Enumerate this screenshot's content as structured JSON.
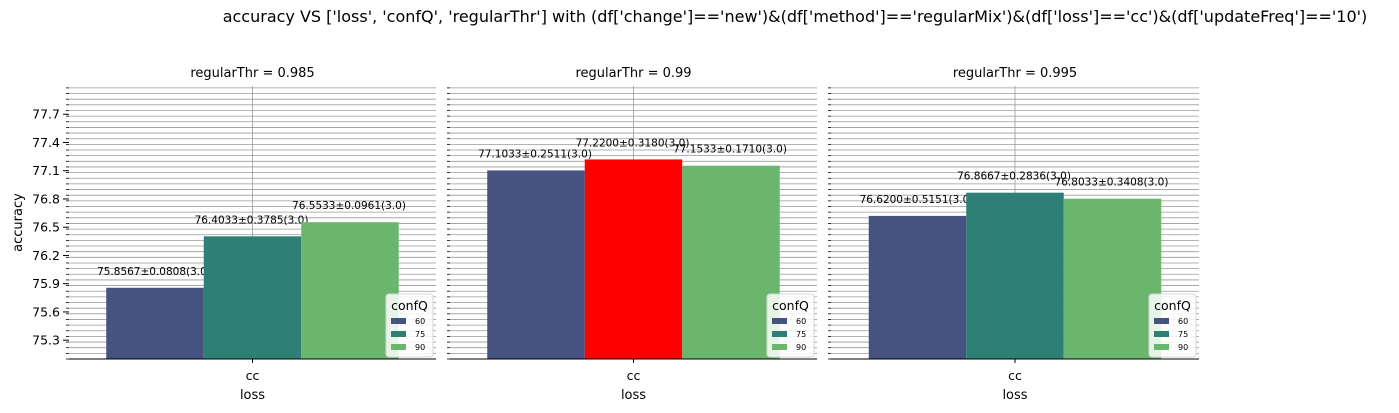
{
  "figure": {
    "title": "accuracy VS ['loss', 'confQ', 'regularThr'] with (df['change']=='new')&(df['method']=='regularMix')&(df['loss']=='cc')&(df['updateFreq']=='10')"
  },
  "chart_data": [
    {
      "type": "bar",
      "title": "regularThr = 0.985",
      "xlabel": "loss",
      "ylabel": "accuracy",
      "categories": [
        "cc"
      ],
      "ylim": [
        75.1,
        78.0
      ],
      "yticks": [
        "75.3",
        "75.6",
        "75.9",
        "76.2",
        "76.5",
        "76.8",
        "77.1",
        "77.4",
        "77.7"
      ],
      "grid": true,
      "legend": {
        "title": "confQ",
        "position": "lower-right"
      },
      "series": [
        {
          "name": "60",
          "color": "#46527f",
          "values": [
            75.8567
          ],
          "label": "75.8567±0.0808(3.0)"
        },
        {
          "name": "75",
          "color": "#2e8077",
          "values": [
            76.4033
          ],
          "label": "76.4033±0.3785(3.0)"
        },
        {
          "name": "90",
          "color": "#6ab66d",
          "values": [
            76.5533
          ],
          "label": "76.5533±0.0961(3.0)"
        }
      ]
    },
    {
      "type": "bar",
      "title": "regularThr = 0.99",
      "xlabel": "loss",
      "ylabel": "",
      "categories": [
        "cc"
      ],
      "ylim": [
        75.1,
        78.0
      ],
      "grid": true,
      "legend": {
        "title": "confQ",
        "position": "lower-right"
      },
      "series": [
        {
          "name": "60",
          "color": "#46527f",
          "values": [
            77.1033
          ],
          "label": "77.1033±0.2511(3.0)"
        },
        {
          "name": "75",
          "color": "#2e8077",
          "bar_color": "#ff0000",
          "values": [
            77.22
          ],
          "label": "77.2200±0.3180(3.0)"
        },
        {
          "name": "90",
          "color": "#6ab66d",
          "values": [
            77.1533
          ],
          "label": "77.1533±0.1710(3.0)"
        }
      ]
    },
    {
      "type": "bar",
      "title": "regularThr = 0.995",
      "xlabel": "loss",
      "ylabel": "",
      "categories": [
        "cc"
      ],
      "ylim": [
        75.1,
        78.0
      ],
      "grid": true,
      "legend": {
        "title": "confQ",
        "position": "lower-right"
      },
      "series": [
        {
          "name": "60",
          "color": "#46527f",
          "values": [
            76.62
          ],
          "label": "76.6200±0.5151(3.0)"
        },
        {
          "name": "75",
          "color": "#2e8077",
          "values": [
            76.8667
          ],
          "label": "76.8667±0.2836(3.0)"
        },
        {
          "name": "90",
          "color": "#6ab66d",
          "values": [
            76.8033
          ],
          "label": "76.8033±0.3408(3.0)"
        }
      ]
    }
  ]
}
